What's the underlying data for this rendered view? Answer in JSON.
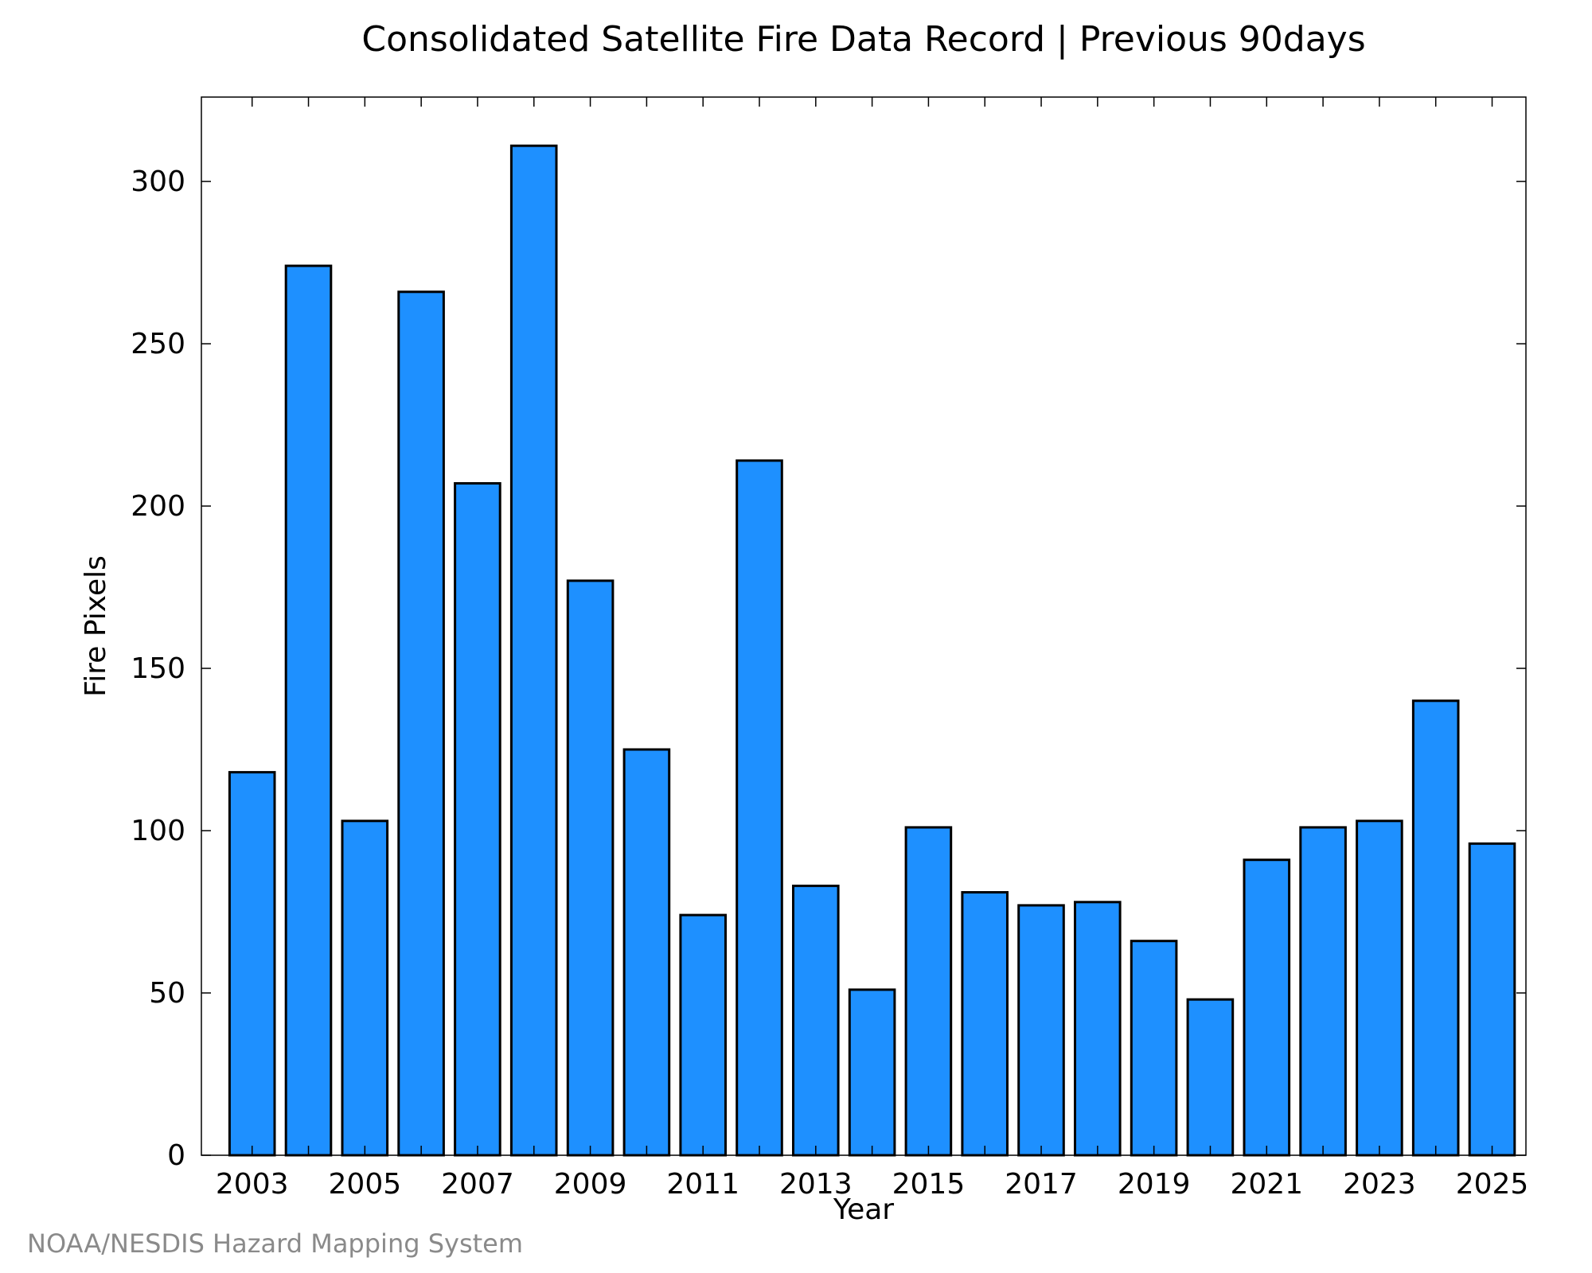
{
  "chart_data": {
    "type": "bar",
    "title": "Consolidated Satellite Fire Data Record | Previous 90days",
    "xlabel": "Year",
    "ylabel": "Fire Pixels",
    "categories": [
      "2003",
      "2004",
      "2005",
      "2006",
      "2007",
      "2008",
      "2009",
      "2010",
      "2011",
      "2012",
      "2013",
      "2014",
      "2015",
      "2016",
      "2017",
      "2018",
      "2019",
      "2020",
      "2021",
      "2022",
      "2023",
      "2024",
      "2025"
    ],
    "values": [
      118,
      274,
      103,
      266,
      207,
      311,
      177,
      125,
      74,
      214,
      83,
      51,
      101,
      81,
      77,
      78,
      66,
      48,
      91,
      101,
      103,
      140,
      96
    ],
    "x_tick_labels": [
      "2003",
      "2005",
      "2007",
      "2009",
      "2011",
      "2013",
      "2015",
      "2017",
      "2019",
      "2021",
      "2023",
      "2025"
    ],
    "y_tick_labels": [
      "0",
      "50",
      "100",
      "150",
      "200",
      "250",
      "300"
    ],
    "ylim": [
      0,
      326
    ],
    "grid": false,
    "bar_color": "#1e90ff",
    "edge_color": "#000000"
  },
  "footer": {
    "credit": "NOAA/NESDIS Hazard Mapping System"
  }
}
